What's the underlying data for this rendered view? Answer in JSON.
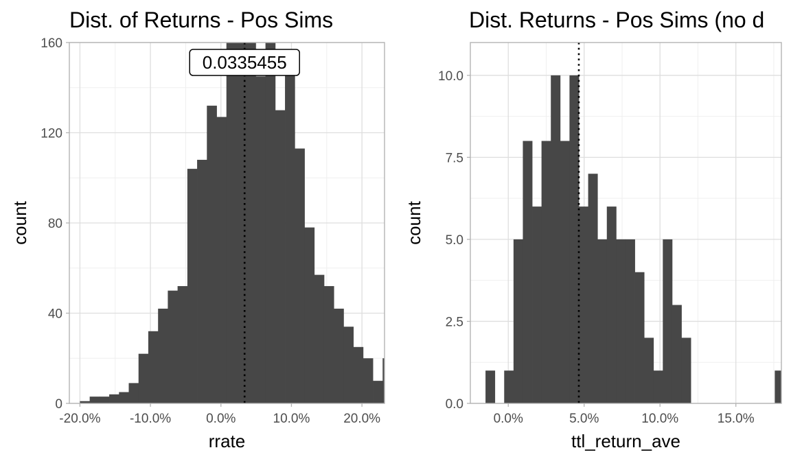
{
  "chart_data": [
    {
      "type": "bar",
      "title": "Dist. of Returns - Pos Sims",
      "xlabel": "rrate",
      "ylabel": "count",
      "xlim": [
        -0.215,
        0.232
      ],
      "ylim": [
        0,
        160
      ],
      "x_ticks": [
        -0.2,
        -0.1,
        0.0,
        0.1,
        0.2
      ],
      "x_tick_labels": [
        "-20.0%",
        "-10.0%",
        "0.0%",
        "10.0%",
        "20.0%"
      ],
      "y_ticks": [
        0,
        40,
        80,
        120,
        160
      ],
      "y_tick_labels": [
        "0",
        "40",
        "80",
        "120",
        "160"
      ],
      "grid": true,
      "bin_start": -0.2,
      "bin_width": 0.01385,
      "values": [
        1,
        3,
        3,
        4,
        5,
        9,
        22,
        32,
        42,
        50,
        52,
        104,
        108,
        132,
        127,
        163,
        164,
        160,
        145,
        163,
        130,
        150,
        113,
        78,
        57,
        52,
        42,
        34,
        25,
        20,
        10,
        20
      ],
      "mean_line": 0.0335455,
      "annotation": "0.0335455",
      "bar_color": "#474747"
    },
    {
      "type": "bar",
      "title": "Dist. Returns - Pos Sims (no d",
      "xlabel": "ttl_return_ave",
      "ylabel": "count",
      "xlim": [
        -0.025,
        0.18
      ],
      "ylim": [
        0,
        11
      ],
      "x_ticks": [
        0.0,
        0.05,
        0.1,
        0.15
      ],
      "x_tick_labels": [
        "0.0%",
        "5.0%",
        "10.0%",
        "15.0%"
      ],
      "y_ticks": [
        0,
        2.5,
        5,
        7.5,
        10
      ],
      "y_tick_labels": [
        "0.0",
        "2.5",
        "5.0",
        "7.5",
        "10.0"
      ],
      "grid": true,
      "bin_start": -0.015,
      "bin_width": 0.00615,
      "values": [
        1,
        0,
        1,
        5,
        8,
        6,
        8,
        10,
        8,
        10,
        6,
        7,
        5,
        6,
        5,
        5,
        4,
        2,
        1,
        5,
        3,
        2,
        0,
        0,
        0,
        0,
        0,
        0,
        0,
        0,
        0,
        1
      ],
      "mean_line": 0.0465,
      "bar_color": "#474747"
    }
  ]
}
